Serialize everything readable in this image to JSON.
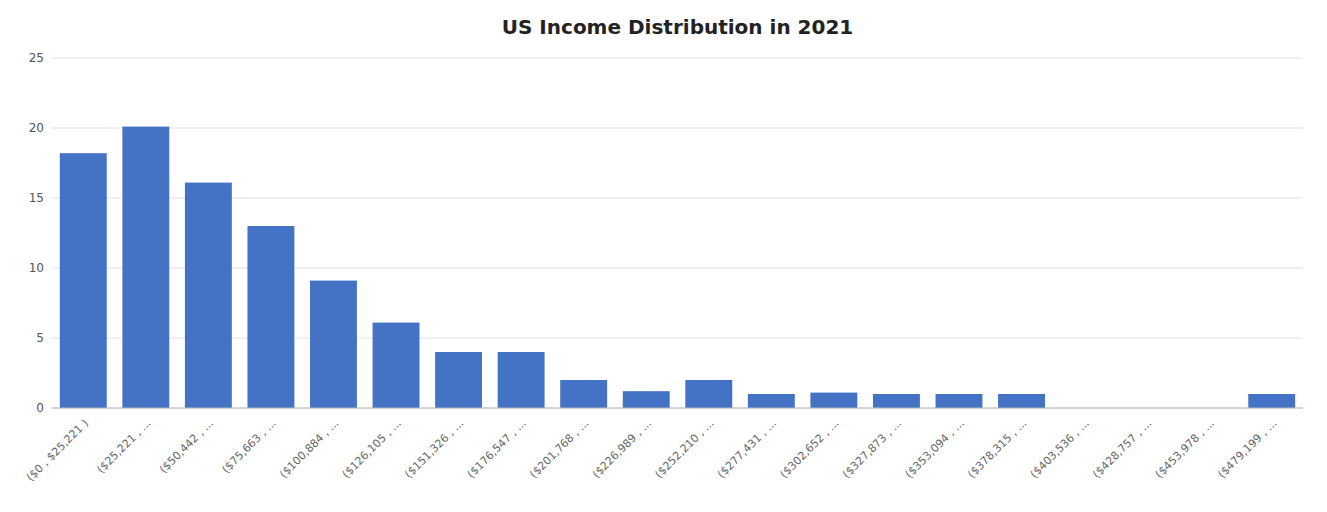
{
  "chart_data": {
    "type": "bar",
    "title": "US Income Distribution in 2021",
    "categories": [
      "($0 , $25,221 )",
      "($25,221 , ...",
      "($50,442 , ...",
      "($75,663 , ...",
      "($100,884 , ...",
      "($126,105 , ...",
      "($151,326 , ...",
      "($176,547 , ...",
      "($201,768 , ...",
      "($226,989 , ...",
      "($252,210 , ...",
      "($277,431 , ...",
      "($302,652 , ...",
      "($327,873 , ...",
      "($353,094 , ...",
      "($378,315 , ...",
      "($403,536 , ...",
      "($428,757 , ...",
      "($453,978 , ...",
      "($479,199 , ..."
    ],
    "values": [
      18.2,
      20.1,
      16.1,
      13.0,
      9.1,
      6.1,
      4.0,
      4.0,
      2.0,
      1.2,
      2.0,
      1.0,
      1.1,
      1.0,
      1.0,
      1.0,
      0.0,
      0.0,
      0.0,
      1.0
    ],
    "color": "#4472C4",
    "ylim": [
      0,
      25
    ],
    "yticks": [
      0,
      5,
      10,
      15,
      20,
      25
    ],
    "grid": true
  }
}
